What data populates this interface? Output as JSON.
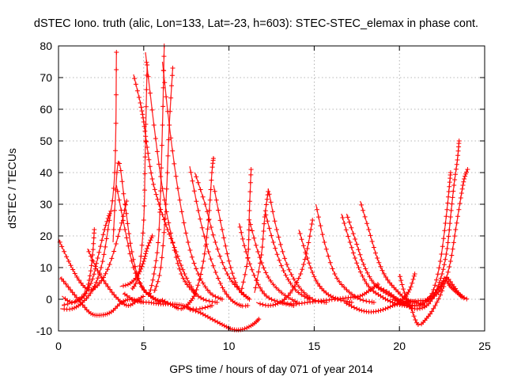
{
  "chart_data": {
    "type": "scatter",
    "title": "dSTEC Iono. truth (alic, Lon=133, Lat=-23, h=603): STEC-STEC_elemax in phase cont.",
    "xlabel": "GPS time / hours of day 071 of year 2014",
    "ylabel": "dSTEC  / TECUs",
    "xlim": [
      0,
      25
    ],
    "ylim": [
      -10,
      80
    ],
    "xticks": [
      0,
      5,
      10,
      15,
      20,
      25
    ],
    "yticks": [
      -10,
      0,
      10,
      20,
      30,
      40,
      50,
      60,
      70,
      80
    ],
    "grid": true,
    "marker": "plus",
    "color": "#ff0000",
    "series": [
      {
        "name": "arc01",
        "points": [
          [
            0.0,
            19
          ],
          [
            0.6,
            12
          ],
          [
            1.2,
            6
          ],
          [
            1.8,
            3
          ],
          [
            2.4,
            5
          ],
          [
            3.0,
            11
          ],
          [
            3.6,
            22
          ],
          [
            4.0,
            31
          ]
        ]
      },
      {
        "name": "arc02",
        "points": [
          [
            0.1,
            7
          ],
          [
            0.7,
            3
          ],
          [
            1.3,
            -1
          ],
          [
            1.9,
            -4.5
          ],
          [
            2.5,
            -5
          ],
          [
            3.1,
            -4
          ],
          [
            3.7,
            -1
          ],
          [
            4.3,
            0
          ],
          [
            5.0,
            -1
          ]
        ]
      },
      {
        "name": "arc03",
        "points": [
          [
            0.1,
            -3
          ],
          [
            0.8,
            -3
          ],
          [
            1.4,
            -1
          ],
          [
            2.0,
            3
          ],
          [
            2.5,
            10
          ],
          [
            2.9,
            22
          ],
          [
            3.3,
            40
          ],
          [
            3.4,
            78
          ]
        ]
      },
      {
        "name": "arc04",
        "points": [
          [
            0.2,
            -2
          ],
          [
            1.2,
            0
          ],
          [
            1.9,
            5
          ],
          [
            2.3,
            13
          ],
          [
            2.7,
            22
          ],
          [
            3.0,
            27
          ]
        ]
      },
      {
        "name": "arc05",
        "points": [
          [
            0.2,
            1
          ],
          [
            0.8,
            -1
          ],
          [
            1.5,
            1
          ],
          [
            1.8,
            6
          ],
          [
            2.0,
            14
          ],
          [
            2.1,
            22
          ]
        ]
      },
      {
        "name": "arc06",
        "points": [
          [
            1.7,
            16
          ],
          [
            2.3,
            9
          ],
          [
            2.9,
            4
          ],
          [
            3.5,
            0
          ],
          [
            4.1,
            -2
          ],
          [
            4.7,
            0
          ],
          [
            5.0,
            1
          ]
        ]
      },
      {
        "name": "arc07",
        "points": [
          [
            3.2,
            18
          ],
          [
            3.5,
            43
          ],
          [
            3.9,
            30
          ],
          [
            4.3,
            15
          ],
          [
            4.8,
            5
          ],
          [
            5.4,
            1
          ],
          [
            6.0,
            -1
          ]
        ]
      },
      {
        "name": "arc08",
        "points": [
          [
            3.4,
            36
          ],
          [
            3.9,
            22
          ],
          [
            4.4,
            10
          ],
          [
            5.0,
            3
          ],
          [
            5.7,
            0
          ],
          [
            6.3,
            -1
          ]
        ]
      },
      {
        "name": "arc09",
        "points": [
          [
            3.8,
            2
          ],
          [
            4.5,
            -0.5
          ],
          [
            5.3,
            -1
          ],
          [
            6.0,
            -1.5
          ],
          [
            6.7,
            -1.5
          ],
          [
            7.3,
            -2
          ],
          [
            7.8,
            -3
          ],
          [
            8.3,
            -3
          ],
          [
            9.0,
            -2
          ]
        ]
      },
      {
        "name": "arc10",
        "points": [
          [
            3.6,
            4
          ],
          [
            4.2,
            5
          ],
          [
            4.7,
            8
          ],
          [
            5.0,
            12
          ],
          [
            5.2,
            16
          ],
          [
            5.5,
            20
          ]
        ]
      },
      {
        "name": "arc11",
        "points": [
          [
            4.3,
            3
          ],
          [
            4.7,
            8
          ],
          [
            5.0,
            25
          ],
          [
            5.1,
            50
          ],
          [
            5.2,
            74
          ]
        ]
      },
      {
        "name": "arc12",
        "points": [
          [
            4.4,
            71
          ],
          [
            4.8,
            62
          ],
          [
            5.0,
            56
          ],
          [
            5.2,
            48
          ],
          [
            5.5,
            38
          ],
          [
            5.9,
            30
          ],
          [
            6.4,
            22
          ],
          [
            6.9,
            15
          ],
          [
            7.4,
            8
          ],
          [
            8.0,
            2
          ]
        ]
      },
      {
        "name": "arc13",
        "points": [
          [
            5.1,
            78
          ],
          [
            5.6,
            55
          ],
          [
            6.1,
            35
          ],
          [
            6.7,
            18
          ],
          [
            7.2,
            8
          ],
          [
            7.8,
            3
          ],
          [
            8.5,
            0
          ],
          [
            9.3,
            -1
          ]
        ]
      },
      {
        "name": "arc14",
        "points": [
          [
            5.3,
            1
          ],
          [
            5.6,
            8
          ],
          [
            5.9,
            22
          ],
          [
            6.1,
            55
          ],
          [
            6.2,
            80
          ]
        ]
      },
      {
        "name": "arc15",
        "points": [
          [
            6.1,
            75
          ],
          [
            6.5,
            55
          ],
          [
            7.0,
            35
          ],
          [
            7.6,
            18
          ],
          [
            8.2,
            8
          ],
          [
            8.9,
            2
          ],
          [
            9.6,
            0
          ]
        ]
      },
      {
        "name": "arc16",
        "points": [
          [
            5.6,
            2
          ],
          [
            6.0,
            10
          ],
          [
            6.3,
            30
          ],
          [
            6.5,
            55
          ],
          [
            6.7,
            73
          ]
        ]
      },
      {
        "name": "arc17",
        "points": [
          [
            6.0,
            0
          ],
          [
            6.7,
            -2
          ],
          [
            7.2,
            -3
          ],
          [
            7.7,
            -1
          ],
          [
            8.1,
            3
          ],
          [
            8.5,
            12
          ],
          [
            8.8,
            25
          ],
          [
            9.0,
            40
          ],
          [
            9.1,
            45
          ]
        ]
      },
      {
        "name": "arc18",
        "points": [
          [
            7.7,
            42
          ],
          [
            8.2,
            28
          ],
          [
            8.8,
            15
          ],
          [
            9.5,
            5
          ],
          [
            10.1,
            0
          ],
          [
            10.7,
            -2
          ],
          [
            11.1,
            -2
          ]
        ]
      },
      {
        "name": "arc19",
        "points": [
          [
            8.0,
            40
          ],
          [
            8.6,
            30
          ],
          [
            9.2,
            18
          ],
          [
            9.9,
            8
          ],
          [
            10.6,
            3
          ],
          [
            11.2,
            0
          ]
        ]
      },
      {
        "name": "arc20",
        "points": [
          [
            9.1,
            36
          ],
          [
            9.6,
            22
          ],
          [
            10.1,
            10
          ],
          [
            10.6,
            3
          ],
          [
            11.2,
            0
          ]
        ]
      },
      {
        "name": "arc21",
        "points": [
          [
            7.5,
            -3
          ],
          [
            8.2,
            -4
          ],
          [
            8.9,
            -6
          ],
          [
            9.6,
            -8
          ],
          [
            10.2,
            -9.5
          ],
          [
            10.8,
            -9.5
          ],
          [
            11.4,
            -8
          ],
          [
            11.8,
            -6
          ]
        ]
      },
      {
        "name": "arc22",
        "points": [
          [
            10.6,
            24
          ],
          [
            11.0,
            15
          ],
          [
            11.6,
            6
          ],
          [
            12.2,
            1
          ],
          [
            13.0,
            -1
          ],
          [
            13.8,
            -2
          ]
        ]
      },
      {
        "name": "arc23",
        "points": [
          [
            10.7,
            2
          ],
          [
            11.1,
            13
          ],
          [
            11.2,
            28
          ],
          [
            11.3,
            41
          ]
        ]
      },
      {
        "name": "arc24",
        "points": [
          [
            11.2,
            25
          ],
          [
            11.7,
            15
          ],
          [
            12.3,
            7
          ],
          [
            13.1,
            2
          ],
          [
            14.0,
            -1
          ]
        ]
      },
      {
        "name": "arc25",
        "points": [
          [
            11.5,
            2
          ],
          [
            11.9,
            14
          ],
          [
            12.1,
            26
          ],
          [
            12.3,
            34
          ]
        ]
      },
      {
        "name": "arc26",
        "points": [
          [
            12.3,
            35
          ],
          [
            12.8,
            22
          ],
          [
            13.4,
            11
          ],
          [
            14.1,
            4
          ],
          [
            14.9,
            0
          ],
          [
            15.7,
            -1
          ]
        ]
      },
      {
        "name": "arc27",
        "points": [
          [
            12.1,
            28
          ],
          [
            12.6,
            18
          ],
          [
            13.2,
            9
          ],
          [
            13.9,
            3
          ],
          [
            14.7,
            0
          ]
        ]
      },
      {
        "name": "arc28",
        "points": [
          [
            11.6,
            -1
          ],
          [
            12.3,
            -2
          ],
          [
            13.0,
            -1
          ],
          [
            13.6,
            2
          ],
          [
            14.2,
            8
          ],
          [
            14.6,
            16
          ],
          [
            14.9,
            25
          ]
        ]
      },
      {
        "name": "arc29",
        "points": [
          [
            14.1,
            22
          ],
          [
            14.6,
            13
          ],
          [
            15.1,
            6
          ],
          [
            15.7,
            2
          ],
          [
            16.4,
            0
          ],
          [
            17.2,
            -1
          ]
        ]
      },
      {
        "name": "arc30",
        "points": [
          [
            15.1,
            30
          ],
          [
            15.6,
            18
          ],
          [
            16.2,
            8
          ],
          [
            16.9,
            3
          ],
          [
            17.7,
            0
          ],
          [
            18.5,
            -1
          ]
        ]
      },
      {
        "name": "arc31",
        "points": [
          [
            13.0,
            -1
          ],
          [
            13.8,
            -1.5
          ],
          [
            14.6,
            -1
          ],
          [
            15.4,
            -0.5
          ],
          [
            16.2,
            0
          ],
          [
            17.0,
            0.5
          ],
          [
            17.7,
            1
          ],
          [
            18.3,
            3
          ],
          [
            18.8,
            5
          ]
        ]
      },
      {
        "name": "arc32",
        "points": [
          [
            16.6,
            27
          ],
          [
            17.1,
            18
          ],
          [
            17.6,
            10
          ],
          [
            18.2,
            4
          ],
          [
            18.9,
            1
          ],
          [
            19.6,
            -1
          ],
          [
            20.3,
            -2
          ],
          [
            21.0,
            -2
          ]
        ]
      },
      {
        "name": "arc33",
        "points": [
          [
            16.9,
            27
          ],
          [
            17.4,
            19
          ],
          [
            17.9,
            11
          ],
          [
            18.5,
            5
          ],
          [
            19.2,
            2
          ],
          [
            19.9,
            0
          ],
          [
            20.6,
            -1
          ]
        ]
      },
      {
        "name": "arc34",
        "points": [
          [
            17.7,
            31
          ],
          [
            18.2,
            22
          ],
          [
            18.7,
            13
          ],
          [
            19.2,
            7
          ],
          [
            19.8,
            3
          ],
          [
            20.4,
            0
          ],
          [
            21.0,
            -1
          ],
          [
            21.5,
            -2
          ]
        ]
      },
      {
        "name": "arc35",
        "points": [
          [
            16.8,
            -1
          ],
          [
            17.5,
            -3
          ],
          [
            18.2,
            -4
          ],
          [
            18.9,
            -3.5
          ],
          [
            19.6,
            -2
          ],
          [
            20.2,
            0
          ],
          [
            20.6,
            3
          ],
          [
            20.9,
            8
          ]
        ]
      },
      {
        "name": "arc36",
        "points": [
          [
            20.0,
            8
          ],
          [
            20.3,
            2
          ],
          [
            20.7,
            -3
          ],
          [
            21.1,
            -8
          ],
          [
            21.6,
            -6
          ],
          [
            22.1,
            -2
          ],
          [
            22.6,
            4
          ],
          [
            23.0,
            12
          ],
          [
            23.3,
            22
          ],
          [
            23.6,
            32
          ],
          [
            23.8,
            38
          ],
          [
            24.0,
            41
          ]
        ]
      },
      {
        "name": "arc37",
        "points": [
          [
            18.7,
            4
          ],
          [
            19.4,
            2
          ],
          [
            20.1,
            -1
          ],
          [
            20.9,
            -3
          ],
          [
            21.6,
            -2
          ],
          [
            22.1,
            2
          ],
          [
            22.5,
            8
          ],
          [
            22.8,
            16
          ],
          [
            23.0,
            26
          ],
          [
            23.2,
            36
          ],
          [
            23.4,
            44
          ],
          [
            23.5,
            50
          ]
        ]
      },
      {
        "name": "arc38",
        "points": [
          [
            19.5,
            0
          ],
          [
            20.2,
            -1
          ],
          [
            20.9,
            -2
          ],
          [
            21.5,
            -1
          ],
          [
            22.0,
            3
          ],
          [
            22.4,
            12
          ],
          [
            22.7,
            24
          ],
          [
            22.9,
            34
          ],
          [
            23.0,
            40
          ]
        ]
      },
      {
        "name": "arc39",
        "points": [
          [
            19.6,
            -2
          ],
          [
            20.4,
            -1
          ],
          [
            21.1,
            -0.5
          ],
          [
            21.8,
            0
          ],
          [
            22.4,
            3
          ],
          [
            22.7,
            7
          ],
          [
            23.2,
            4
          ],
          [
            23.6,
            1
          ],
          [
            24.0,
            0
          ]
        ]
      },
      {
        "name": "arc40",
        "points": [
          [
            21.3,
            -1
          ],
          [
            21.9,
            1
          ],
          [
            22.4,
            4
          ],
          [
            22.7,
            6
          ],
          [
            23.0,
            4
          ],
          [
            23.4,
            2
          ],
          [
            23.8,
            0.5
          ]
        ]
      }
    ]
  }
}
